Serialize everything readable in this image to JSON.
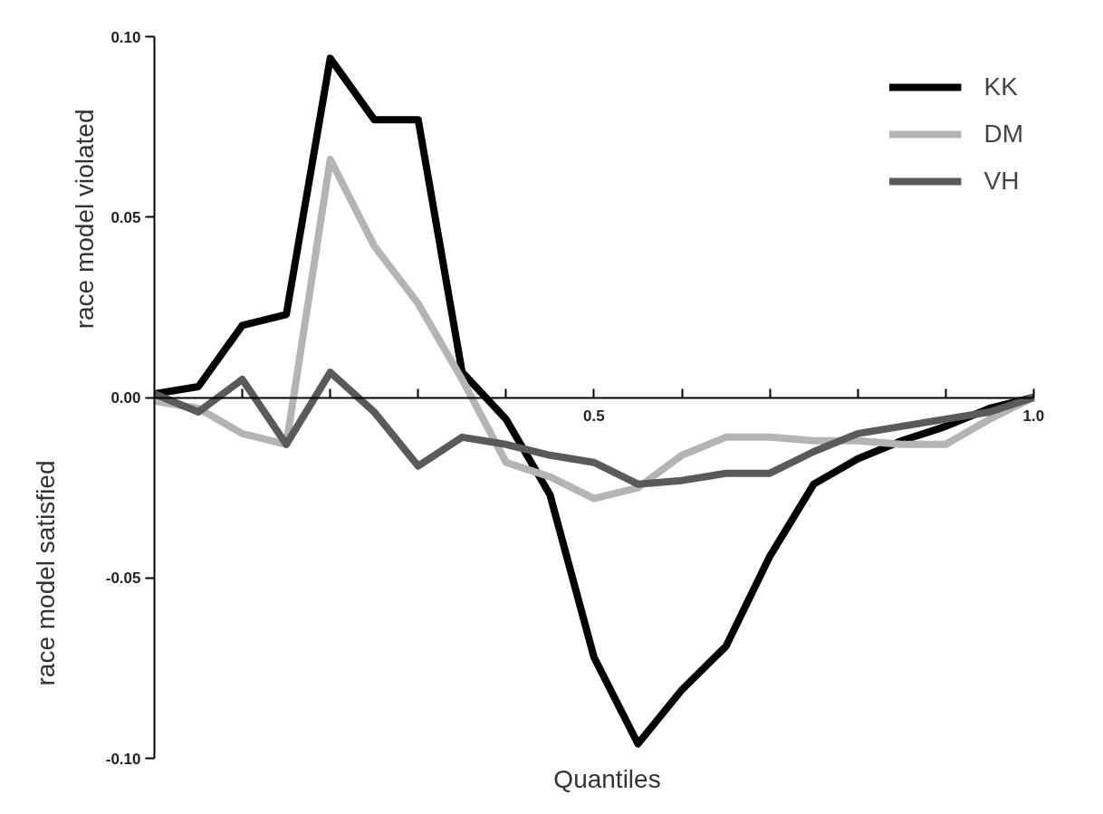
{
  "chart_data": {
    "type": "line",
    "xlabel": "Quantiles",
    "ylabel": "race model violated",
    "annotations": [
      "race model satisfied"
    ],
    "x": [
      0,
      0.05,
      0.1,
      0.15,
      0.2,
      0.25,
      0.3,
      0.35,
      0.4,
      0.45,
      0.5,
      0.55,
      0.6,
      0.65,
      0.7,
      0.75,
      0.8,
      0.85,
      0.9,
      0.95,
      1.0
    ],
    "series": [
      {
        "name": "KK",
        "color": "#000000",
        "values": [
          0.001,
          0.003,
          0.02,
          0.023,
          0.094,
          0.077,
          0.077,
          0.007,
          -0.006,
          -0.027,
          -0.072,
          -0.096,
          -0.081,
          -0.069,
          -0.044,
          -0.024,
          -0.017,
          -0.012,
          -0.008,
          -0.003,
          0
        ]
      },
      {
        "name": "DM",
        "color": "#b4b4b4",
        "values": [
          -0.001,
          -0.003,
          -0.01,
          -0.013,
          0.066,
          0.042,
          0.026,
          0.005,
          -0.018,
          -0.022,
          -0.028,
          -0.025,
          -0.016,
          -0.011,
          -0.011,
          -0.012,
          -0.012,
          -0.013,
          -0.013,
          -0.006,
          0
        ]
      },
      {
        "name": "VH",
        "color": "#5a5a5a",
        "values": [
          0.001,
          -0.004,
          0.005,
          -0.013,
          0.007,
          -0.004,
          -0.019,
          -0.011,
          -0.013,
          -0.016,
          -0.018,
          -0.024,
          -0.023,
          -0.021,
          -0.021,
          -0.015,
          -0.01,
          -0.008,
          -0.006,
          -0.004,
          0
        ]
      }
    ],
    "xlim": [
      0,
      1.0
    ],
    "ylim": [
      -0.1,
      0.1
    ],
    "xticks": [
      {
        "value": 0.1,
        "label": null
      },
      {
        "value": 0.2,
        "label": null
      },
      {
        "value": 0.3,
        "label": null
      },
      {
        "value": 0.4,
        "label": null
      },
      0.5,
      {
        "value": 0.6,
        "label": null
      },
      {
        "value": 0.7,
        "label": null
      },
      {
        "value": 0.8,
        "label": null
      },
      {
        "value": 0.9,
        "label": null
      },
      {
        "value": 1.0,
        "label": "1.0"
      }
    ],
    "yticks": [
      {
        "value": -0.1,
        "label": "-0.10"
      },
      {
        "value": -0.05,
        "label": "-0.05"
      },
      {
        "value": 0,
        "label": "0.00"
      },
      {
        "value": 0.05,
        "label": "0.05"
      },
      {
        "value": 0.1,
        "label": "0.10"
      }
    ],
    "legend": "top right",
    "grid": false,
    "line_style": "solid",
    "marker": "none"
  }
}
